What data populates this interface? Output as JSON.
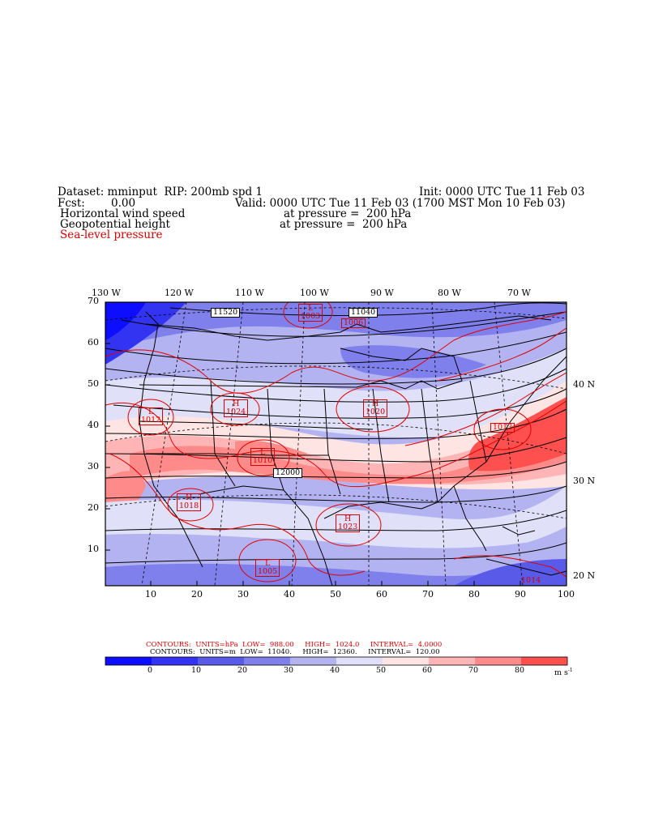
{
  "header": {
    "dataset_line": "Dataset: mminput  RIP: 200mb spd 1",
    "init_line": "Init: 0000 UTC Tue 11 Feb 03",
    "fcst_label": "Fcst:",
    "fcst_value": "0.00",
    "valid_line": "Valid: 0000 UTC Tue 11 Feb 03 (1700 MST Mon 10 Feb 03)",
    "field1": "Horizontal wind speed",
    "field1_level": "at pressure =  200 hPa",
    "field2": "Geopotential height",
    "field2_level": "at pressure =  200 hPa",
    "field3": "Sea-level pressure"
  },
  "map": {
    "top_lon_labels": [
      "130 W",
      "120 W",
      "110 W",
      "100 W",
      "90 W",
      "80 W",
      "70 W"
    ],
    "right_lat_labels": [
      "40 N",
      "30 N",
      "20 N"
    ],
    "left_axis_ticks": [
      "70",
      "60",
      "50",
      "40",
      "30",
      "20",
      "10"
    ],
    "bottom_axis_ticks": [
      "10",
      "20",
      "30",
      "40",
      "50",
      "60",
      "70",
      "80",
      "90",
      "100"
    ],
    "height_labels": [
      "11520",
      "11040",
      "12000"
    ],
    "pressure_centers": [
      {
        "type": "L",
        "value": "1003"
      },
      {
        "type": "",
        "value": "1006"
      },
      {
        "type": "L",
        "value": "1012"
      },
      {
        "type": "H",
        "value": "1024"
      },
      {
        "type": "H",
        "value": "1020"
      },
      {
        "type": "L",
        "value": "1010"
      },
      {
        "type": "",
        "value": "1013"
      },
      {
        "type": "H",
        "value": "1018"
      },
      {
        "type": "H",
        "value": "1023"
      },
      {
        "type": "L",
        "value": "1005"
      },
      {
        "type": "",
        "value": "1014"
      }
    ]
  },
  "footer": {
    "contours_red": "CONTOURS:  UNITS=hPa  LOW=  988.00     HIGH=  1024.0     INTERVAL=  4.0000",
    "contours_black": "CONTOURS:  UNITS=m  LOW=  11040.     HIGH=  12360.     INTERVAL=  120.00",
    "colorbar_labels": [
      "0",
      "10",
      "20",
      "30",
      "40",
      "50",
      "60",
      "70",
      "80"
    ],
    "colorbar_units": "m s",
    "colorbar_units_exp": "-1",
    "colorbar_colors": [
      "#0d0dff",
      "#3333f2",
      "#5a5ae8",
      "#8080ec",
      "#b3b3f2",
      "#e0e0f8",
      "#ffe4e4",
      "#ffb5b5",
      "#ff8a8a",
      "#ff5050"
    ]
  }
}
